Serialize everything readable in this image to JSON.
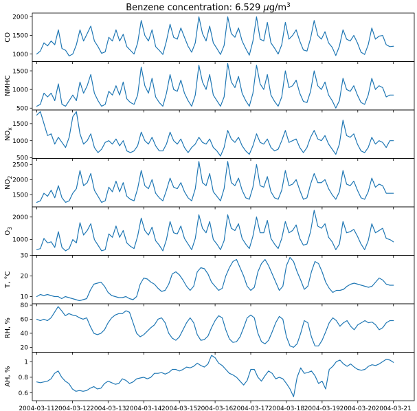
{
  "chart_data": {
    "type": "line",
    "title": "Benzene concentration: 6.529 μg/m³",
    "title_parts": {
      "prefix": "Benzene concentration: 6.529 ",
      "mu": "μ",
      "unit_base": "g/m",
      "unit_sup": "3"
    },
    "x": {
      "type": "date",
      "start": "2004-03-11T00:00:00",
      "end": "2004-03-21T00:00:00",
      "range": [
        "2004-03-10T21:00:00",
        "2004-03-21T14:00:00"
      ],
      "tick_labels": [
        "2004-03-11",
        "2004-03-12",
        "2004-03-13",
        "2004-03-14",
        "2004-03-15",
        "2004-03-16",
        "2004-03-17",
        "2004-03-18",
        "2004-03-19",
        "2004-03-20",
        "2004-03-21"
      ]
    },
    "series_color": "#1f77b4",
    "panels": [
      {
        "ylabel": "CO",
        "ylim": [
          800,
          2100
        ],
        "yticks": [
          1000,
          1500,
          2000
        ],
        "values": [
          1000,
          1080,
          1300,
          1220,
          1350,
          1250,
          1650,
          1150,
          1100,
          950,
          1000,
          1250,
          1650,
          1350,
          1550,
          1750,
          1350,
          1200,
          1020,
          1060,
          1450,
          1350,
          1650,
          1350,
          1530,
          1200,
          1100,
          1000,
          1300,
          1900,
          1500,
          1350,
          1650,
          1200,
          1100,
          990,
          1350,
          1800,
          1450,
          1400,
          1700,
          1450,
          1210,
          1050,
          1300,
          2000,
          1550,
          1350,
          1750,
          1300,
          1150,
          990,
          1230,
          2000,
          1550,
          1450,
          1700,
          1350,
          1150,
          970,
          1350,
          2000,
          1400,
          1350,
          1850,
          1300,
          1160,
          1000,
          1250,
          1850,
          1400,
          1500,
          1650,
          1350,
          1110,
          1080,
          1420,
          1900,
          1500,
          1400,
          1600,
          1300,
          1180,
          960,
          1210,
          1650,
          1400,
          1350,
          1500,
          1300,
          1050,
          990,
          1250,
          1700,
          1400,
          1480,
          1500,
          1250,
          1200,
          1210
        ]
      },
      {
        "ylabel": "NMHC",
        "ylim": [
          450,
          1750
        ],
        "yticks": [
          500,
          1000,
          1500
        ],
        "values": [
          550,
          600,
          900,
          800,
          900,
          700,
          1150,
          600,
          550,
          700,
          850,
          700,
          1200,
          900,
          1100,
          1400,
          900,
          700,
          550,
          600,
          950,
          850,
          1100,
          850,
          1200,
          750,
          650,
          600,
          850,
          1600,
          1100,
          900,
          1300,
          800,
          650,
          550,
          900,
          1400,
          1000,
          950,
          1250,
          900,
          700,
          550,
          850,
          1650,
          1200,
          1000,
          1400,
          850,
          700,
          550,
          800,
          1700,
          1200,
          1050,
          1350,
          900,
          700,
          550,
          900,
          1650,
          1150,
          1000,
          1400,
          850,
          680,
          550,
          800,
          1500,
          1050,
          1100,
          1250,
          900,
          680,
          650,
          950,
          1500,
          1100,
          1000,
          1200,
          850,
          700,
          500,
          700,
          1300,
          1000,
          950,
          1100,
          850,
          650,
          600,
          850,
          1300,
          1000,
          1100,
          1050,
          800,
          850,
          850
        ]
      },
      {
        "ylabel": "NOₓ",
        "ylabel_base": "NO",
        "ylabel_sub": "x",
        "ylim": [
          480,
          1900
        ],
        "yticks": [
          500,
          1000,
          1500
        ],
        "values": [
          1750,
          1850,
          1500,
          1150,
          1200,
          900,
          1100,
          950,
          800,
          1100,
          1700,
          1850,
          1200,
          900,
          1000,
          1200,
          800,
          650,
          750,
          950,
          1000,
          900,
          1050,
          850,
          1000,
          700,
          650,
          700,
          850,
          1250,
          1000,
          900,
          1100,
          850,
          700,
          700,
          900,
          1250,
          1000,
          900,
          1050,
          800,
          650,
          800,
          900,
          1100,
          950,
          900,
          1050,
          800,
          700,
          550,
          800,
          1300,
          1050,
          950,
          1100,
          850,
          700,
          600,
          850,
          1200,
          950,
          900,
          1050,
          800,
          700,
          750,
          1000,
          1300,
          950,
          1000,
          1050,
          800,
          650,
          800,
          1100,
          1300,
          1050,
          1000,
          1150,
          900,
          750,
          600,
          900,
          1600,
          1150,
          1100,
          1200,
          900,
          700,
          650,
          800,
          1100,
          900,
          1000,
          950,
          800,
          1000,
          1000
        ]
      },
      {
        "ylabel": "NO₂",
        "ylabel_base": "NO",
        "ylabel_sub": "2",
        "ylim": [
          1100,
          2700
        ],
        "yticks": [
          1500,
          2000,
          2500
        ],
        "values": [
          1250,
          1300,
          1550,
          1450,
          1650,
          1400,
          1800,
          1400,
          1250,
          1300,
          1550,
          1700,
          2300,
          1800,
          1900,
          2200,
          1650,
          1450,
          1250,
          1300,
          1750,
          1600,
          1950,
          1600,
          1900,
          1450,
          1350,
          1300,
          1700,
          2300,
          1800,
          1700,
          2000,
          1550,
          1400,
          1300,
          1650,
          2050,
          1750,
          1700,
          1900,
          1600,
          1400,
          1300,
          1700,
          2600,
          1900,
          1800,
          2200,
          1600,
          1450,
          1300,
          1700,
          2600,
          1900,
          1800,
          2050,
          1650,
          1400,
          1350,
          1750,
          2500,
          1800,
          1750,
          2100,
          1600,
          1400,
          1350,
          1650,
          2300,
          1800,
          1850,
          2000,
          1650,
          1350,
          1400,
          1850,
          2200,
          1900,
          1900,
          2000,
          1700,
          1500,
          1350,
          1600,
          2300,
          1850,
          1800,
          1950,
          1650,
          1400,
          1350,
          1600,
          2050,
          1750,
          1850,
          1800,
          1550,
          1550,
          1550
        ]
      },
      {
        "ylabel": "O₃",
        "ylabel_base": "O",
        "ylabel_sub": "3",
        "ylim": [
          300,
          2450
        ],
        "yticks": [
          1000,
          2000
        ],
        "values": [
          550,
          600,
          1050,
          850,
          900,
          650,
          1350,
          650,
          500,
          600,
          1000,
          850,
          1750,
          1200,
          1400,
          1700,
          1000,
          750,
          500,
          550,
          1250,
          1100,
          1600,
          1100,
          1400,
          850,
          700,
          600,
          1150,
          1950,
          1400,
          1200,
          1550,
          950,
          750,
          500,
          1000,
          1800,
          1300,
          1250,
          1600,
          1050,
          800,
          550,
          1050,
          2100,
          1500,
          1300,
          1800,
          1000,
          800,
          550,
          950,
          2100,
          1500,
          1400,
          1700,
          1050,
          800,
          600,
          1150,
          2000,
          1300,
          1300,
          1850,
          1050,
          800,
          600,
          1050,
          1800,
          1300,
          1400,
          1650,
          1050,
          750,
          800,
          1350,
          2300,
          1600,
          1500,
          1700,
          1100,
          900,
          550,
          800,
          1800,
          1300,
          1350,
          1450,
          1150,
          800,
          550,
          950,
          1700,
          1300,
          1400,
          1500,
          1050,
          1000,
          900
        ]
      },
      {
        "ylabel": "T, °C",
        "ylim": [
          6.5,
          30
        ],
        "yticks": [
          10,
          20,
          30
        ],
        "values": [
          10,
          11,
          10.5,
          11,
          10.5,
          10,
          10,
          9,
          10,
          9.5,
          9,
          8.5,
          8,
          8.5,
          9,
          13,
          16,
          16.5,
          17,
          15,
          12,
          10.5,
          10,
          9.5,
          9.5,
          10,
          9,
          8.5,
          10,
          16,
          19,
          18.5,
          17,
          16,
          14,
          12.5,
          13,
          16,
          21,
          22,
          20.5,
          18,
          15,
          13,
          15,
          22,
          24,
          23.5,
          21,
          17,
          15,
          13,
          14,
          20,
          24,
          27,
          28,
          24,
          20,
          15,
          13,
          14.5,
          22,
          26,
          28,
          25,
          21,
          17,
          13,
          15,
          25,
          29,
          27,
          22,
          18,
          13.5,
          15,
          22,
          27,
          26,
          22,
          17,
          14,
          12,
          13,
          13,
          13.5,
          15,
          16,
          16.5,
          16,
          15.5,
          15,
          14.5,
          15,
          17,
          19,
          18,
          16,
          15.5,
          15.5
        ]
      },
      {
        "ylabel": "RH, %",
        "ylim": [
          13,
          82
        ],
        "yticks": [
          20,
          40,
          60,
          80
        ],
        "values": [
          60,
          58,
          60,
          58,
          62,
          70,
          78,
          72,
          65,
          68,
          66,
          65,
          62,
          60,
          62,
          50,
          40,
          38,
          40,
          45,
          55,
          62,
          66,
          68,
          68,
          72,
          70,
          55,
          40,
          35,
          38,
          43,
          48,
          52,
          60,
          62,
          55,
          40,
          33,
          30,
          35,
          45,
          55,
          62,
          55,
          38,
          30,
          31,
          36,
          48,
          58,
          65,
          62,
          45,
          32,
          27,
          28,
          35,
          48,
          62,
          66,
          62,
          40,
          28,
          25,
          30,
          42,
          55,
          64,
          60,
          35,
          22,
          20,
          25,
          40,
          58,
          55,
          35,
          22,
          22,
          30,
          42,
          55,
          62,
          58,
          50,
          55,
          58,
          50,
          45,
          52,
          55,
          58,
          55,
          56,
          52,
          45,
          48,
          55,
          58,
          58
        ]
      },
      {
        "ylabel": "AH, %",
        "ylim": [
          0.5,
          1.12
        ],
        "yticks": [
          0.6,
          0.8,
          1.0
        ],
        "values": [
          0.74,
          0.73,
          0.74,
          0.75,
          0.78,
          0.85,
          0.88,
          0.8,
          0.75,
          0.72,
          0.65,
          0.62,
          0.63,
          0.62,
          0.63,
          0.66,
          0.68,
          0.65,
          0.66,
          0.72,
          0.75,
          0.73,
          0.71,
          0.72,
          0.78,
          0.76,
          0.72,
          0.74,
          0.78,
          0.79,
          0.8,
          0.78,
          0.8,
          0.85,
          0.85,
          0.86,
          0.84,
          0.86,
          0.9,
          0.9,
          0.88,
          0.9,
          0.93,
          0.92,
          0.94,
          0.98,
          0.95,
          0.93,
          0.97,
          1.08,
          1.05,
          0.98,
          0.95,
          0.9,
          0.85,
          0.83,
          0.8,
          0.75,
          0.7,
          0.76,
          0.9,
          0.9,
          0.8,
          0.75,
          0.82,
          0.88,
          0.85,
          0.78,
          0.8,
          0.78,
          0.72,
          0.65,
          0.55,
          0.8,
          0.92,
          0.85,
          0.86,
          0.88,
          0.82,
          0.72,
          0.75,
          0.65,
          0.9,
          0.94,
          1.0,
          1.02,
          0.97,
          0.94,
          0.97,
          0.93,
          0.9,
          0.89,
          0.9,
          0.94,
          0.96,
          0.95,
          0.97,
          1.0,
          1.03,
          1.02,
          0.99
        ]
      }
    ]
  }
}
